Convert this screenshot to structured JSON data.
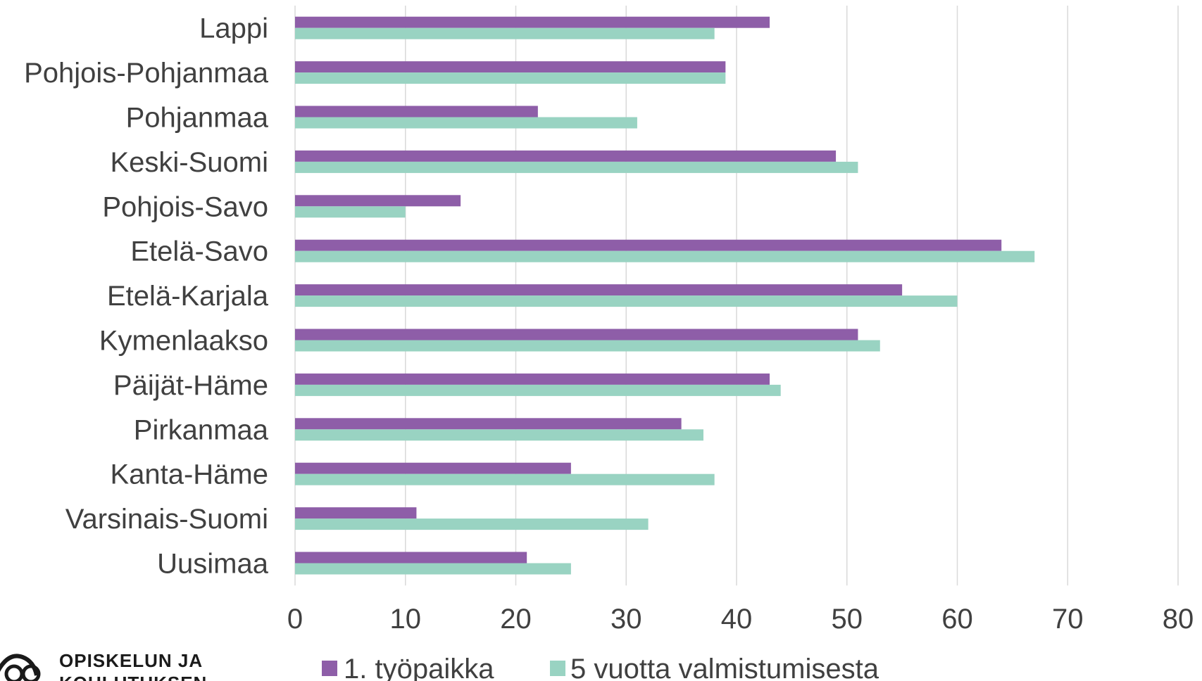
{
  "chart_data": {
    "type": "bar",
    "orientation": "horizontal",
    "title": "",
    "xlabel": "",
    "ylabel": "",
    "xlim": [
      0,
      80
    ],
    "x_ticks": [
      0,
      10,
      20,
      30,
      40,
      50,
      60,
      70,
      80
    ],
    "grid": "vertical",
    "legend_position": "bottom",
    "categories": [
      "Lappi",
      "Pohjois-Pohjanmaa",
      "Pohjanmaa",
      "Keski-Suomi",
      "Pohjois-Savo",
      "Etelä-Savo",
      "Etelä-Karjala",
      "Kymenlaakso",
      "Päijät-Häme",
      "Pirkanmaa",
      "Kanta-Häme",
      "Varsinais-Suomi",
      "Uusimaa"
    ],
    "series": [
      {
        "name": "1. työpaikka",
        "color": "#8e5ea8",
        "values": [
          43,
          39,
          22,
          49,
          15,
          64,
          55,
          51,
          43,
          35,
          25,
          11,
          21
        ]
      },
      {
        "name": "5 vuotta valmistumisesta",
        "color": "#99d3c2",
        "values": [
          38,
          39,
          31,
          51,
          10,
          67,
          60,
          53,
          44,
          37,
          38,
          32,
          25
        ]
      }
    ],
    "gridline_color": "#d9d9d9"
  },
  "logo": {
    "text_line1": "OPISKELUN JA",
    "text_line2": "KOULUTUKSEN"
  }
}
